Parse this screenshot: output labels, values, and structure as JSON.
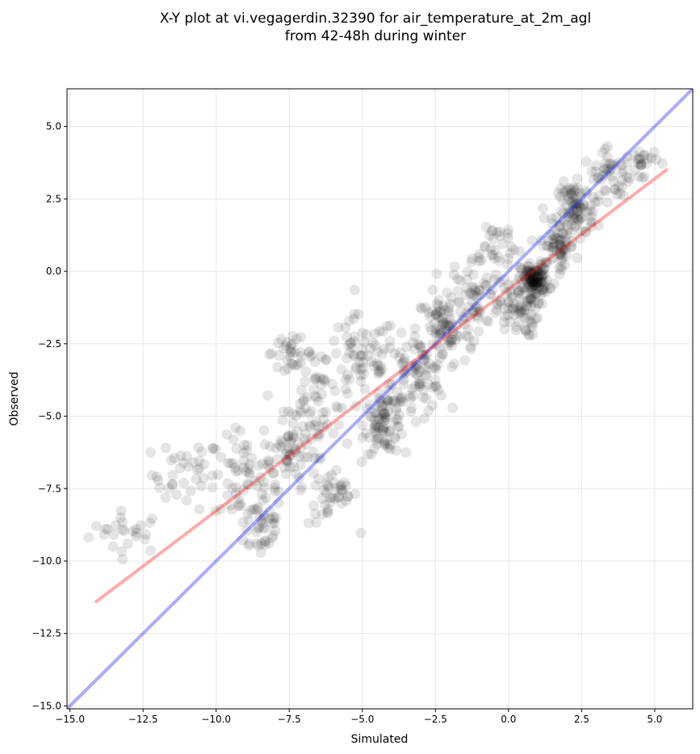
{
  "chart_data": {
    "type": "scatter",
    "title": "X-Y plot at vi.vegagerdin.32390 for air_temperature_at_2m_agl",
    "subtitle": "from 42-48h during winter",
    "xlabel": "Simulated",
    "ylabel": "Observed",
    "xlim": [
      -15.1,
      6.3
    ],
    "ylim": [
      -15.1,
      6.3
    ],
    "x_ticks": [
      -15.0,
      -12.5,
      -10.0,
      -7.5,
      -5.0,
      -2.5,
      0.0,
      2.5,
      5.0
    ],
    "y_ticks": [
      -15.0,
      -12.5,
      -10.0,
      -7.5,
      -5.0,
      -2.5,
      0.0,
      2.5,
      5.0
    ],
    "x_tick_labels": [
      "−15.0",
      "−12.5",
      "−10.0",
      "−7.5",
      "−5.0",
      "−2.5",
      "0.0",
      "2.5",
      "5.0"
    ],
    "y_tick_labels": [
      "−15.0",
      "−12.5",
      "−10.0",
      "−7.5",
      "−5.0",
      "−2.5",
      "0.0",
      "2.5",
      "5.0"
    ],
    "grid": true,
    "point_color": "#000000",
    "point_opacity": 0.1,
    "lines": [
      {
        "kind": "identity",
        "color": "#0000ff",
        "opacity": 0.33,
        "from": [
          -15.1,
          -15.1
        ],
        "to": [
          6.3,
          6.3
        ]
      },
      {
        "kind": "linear-fit",
        "color": "#ff0000",
        "opacity": 0.33,
        "from": [
          -14.1,
          -11.4
        ],
        "to": [
          5.4,
          3.5
        ]
      }
    ],
    "clusters": [
      {
        "center": [
          -13.0,
          -9.0
        ],
        "spread": [
          1.1,
          0.6
        ],
        "count": 26
      },
      {
        "center": [
          -11.0,
          -7.0
        ],
        "spread": [
          1.0,
          1.0
        ],
        "count": 38
      },
      {
        "center": [
          -9.0,
          -7.2
        ],
        "spread": [
          0.9,
          1.2
        ],
        "count": 55
      },
      {
        "center": [
          -8.5,
          -8.8
        ],
        "spread": [
          0.7,
          0.9
        ],
        "count": 40
      },
      {
        "center": [
          -7.5,
          -6.2
        ],
        "spread": [
          0.8,
          1.0
        ],
        "count": 60
      },
      {
        "center": [
          -6.5,
          -4.5
        ],
        "spread": [
          1.0,
          1.5
        ],
        "count": 65
      },
      {
        "center": [
          -7.5,
          -2.8
        ],
        "spread": [
          0.7,
          0.4
        ],
        "count": 30
      },
      {
        "center": [
          -6.0,
          -7.8
        ],
        "spread": [
          0.7,
          0.8
        ],
        "count": 40
      },
      {
        "center": [
          -5.0,
          -3.0
        ],
        "spread": [
          1.0,
          1.2
        ],
        "count": 65
      },
      {
        "center": [
          -4.2,
          -5.2
        ],
        "spread": [
          0.6,
          0.9
        ],
        "count": 85
      },
      {
        "center": [
          -3.2,
          -3.6
        ],
        "spread": [
          0.9,
          1.1
        ],
        "count": 80
      },
      {
        "center": [
          -2.2,
          -2.0
        ],
        "spread": [
          0.8,
          1.1
        ],
        "count": 75
      },
      {
        "center": [
          -1.2,
          -0.8
        ],
        "spread": [
          0.8,
          1.1
        ],
        "count": 65
      },
      {
        "center": [
          -0.5,
          0.9
        ],
        "spread": [
          0.8,
          0.8
        ],
        "count": 30
      },
      {
        "center": [
          0.3,
          -1.3
        ],
        "spread": [
          0.6,
          0.8
        ],
        "count": 75
      },
      {
        "center": [
          0.9,
          -0.3
        ],
        "spread": [
          0.4,
          0.5
        ],
        "count": 120
      },
      {
        "center": [
          1.7,
          0.9
        ],
        "spread": [
          0.5,
          0.7
        ],
        "count": 65
      },
      {
        "center": [
          2.3,
          2.1
        ],
        "spread": [
          0.5,
          0.8
        ],
        "count": 80
      },
      {
        "center": [
          3.5,
          3.3
        ],
        "spread": [
          0.8,
          0.7
        ],
        "count": 55
      },
      {
        "center": [
          4.6,
          3.8
        ],
        "spread": [
          0.4,
          0.4
        ],
        "count": 20
      }
    ]
  }
}
